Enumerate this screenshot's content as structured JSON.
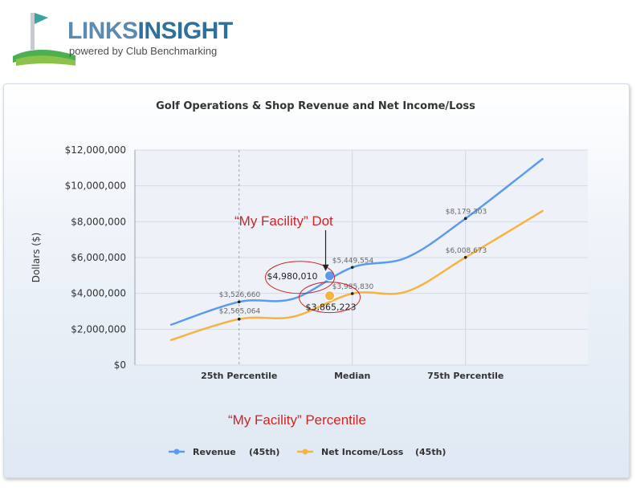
{
  "brand": {
    "name_part1": "LINKS",
    "name_part2": "INSIGHT",
    "tagline": "powered by Club Benchmarking"
  },
  "annotations": {
    "dot_label": "“My Facility” Dot",
    "percentile_label": "“My Facility” Percentile"
  },
  "colors": {
    "revenue": "#5b9bef",
    "net_income": "#f6b340",
    "annotation": "#c62828"
  },
  "chart_data": {
    "type": "line",
    "title": "Golf Operations & Shop Revenue and Net Income/Loss",
    "ylabel": "Dollars ($)",
    "xlabel": "",
    "ylim": [
      0,
      12000000
    ],
    "y_ticks": [
      "$0",
      "$2,000,000",
      "$4,000,000",
      "$6,000,000",
      "$8,000,000",
      "$10,000,000",
      "$12,000,000"
    ],
    "x_ticks": [
      "25th Percentile",
      "Median",
      "75th Percentile"
    ],
    "x_tick_positions": [
      25,
      50,
      75
    ],
    "xlim": [
      2,
      102
    ],
    "grid": true,
    "legend_position": "bottom",
    "series": [
      {
        "name": "Revenue",
        "percentile_label": "(45th)",
        "color": "#5b9bef",
        "x": [
          10,
          25,
          37,
          50,
          62,
          75,
          92
        ],
        "y": [
          2250000,
          3526660,
          3700000,
          5449554,
          6000000,
          8179303,
          11500000
        ],
        "point_labels": [
          {
            "x": 25,
            "y": 3526660,
            "label": "$3,526,660"
          },
          {
            "x": 50,
            "y": 5449554,
            "label": "$5,449,554"
          },
          {
            "x": 75,
            "y": 8179303,
            "label": "$8,179,303"
          }
        ],
        "my_facility": {
          "x": 45,
          "y": 4980010,
          "label": "$4,980,010"
        }
      },
      {
        "name": "Net Income/Loss",
        "percentile_label": "(45th)",
        "color": "#f6b340",
        "x": [
          10,
          25,
          37,
          50,
          62,
          75,
          92
        ],
        "y": [
          1400000,
          2565064,
          2700000,
          3985830,
          4100000,
          6008673,
          8600000
        ],
        "point_labels": [
          {
            "x": 25,
            "y": 2565064,
            "label": "$2,565,064"
          },
          {
            "x": 50,
            "y": 3985830,
            "label": "$3,985,830"
          },
          {
            "x": 75,
            "y": 6008673,
            "label": "$6,008,673"
          }
        ],
        "my_facility": {
          "x": 45,
          "y": 3865223,
          "label": "$3,865,223"
        }
      }
    ]
  }
}
